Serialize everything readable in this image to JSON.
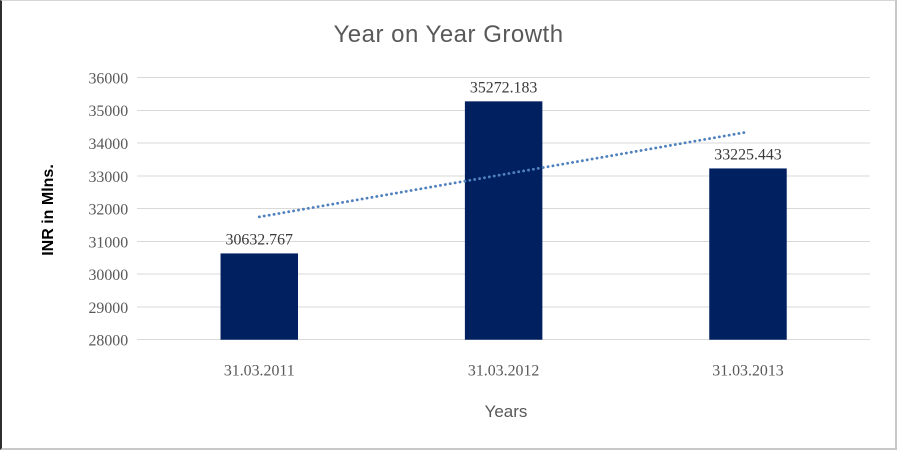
{
  "chart_data": {
    "type": "bar",
    "title": "Year on Year Growth",
    "xlabel": "Years",
    "ylabel": "INR in Mlns.",
    "categories": [
      "31.03.2011",
      "31.03.2012",
      "31.03.2013"
    ],
    "values": [
      30632.767,
      35272.183,
      33225.443
    ],
    "data_labels": [
      "30632.767",
      "35272.183",
      "33225.443"
    ],
    "ylim": [
      28000,
      36000
    ],
    "ytick_step": 1000,
    "grid": "horizontal",
    "legend": "none",
    "bar_color": "#002060",
    "trendline": {
      "type": "linear",
      "style": "dotted",
      "color": "#4F81BD",
      "start_value": 31746.8,
      "end_value": 34339.5
    },
    "colors": {
      "title": "#595959",
      "tick_labels": "#595959",
      "data_labels": "#3a3a3a",
      "gridline": "#d9d9d9",
      "y_axis_title": "#000000",
      "x_axis_title": "#595959"
    }
  }
}
